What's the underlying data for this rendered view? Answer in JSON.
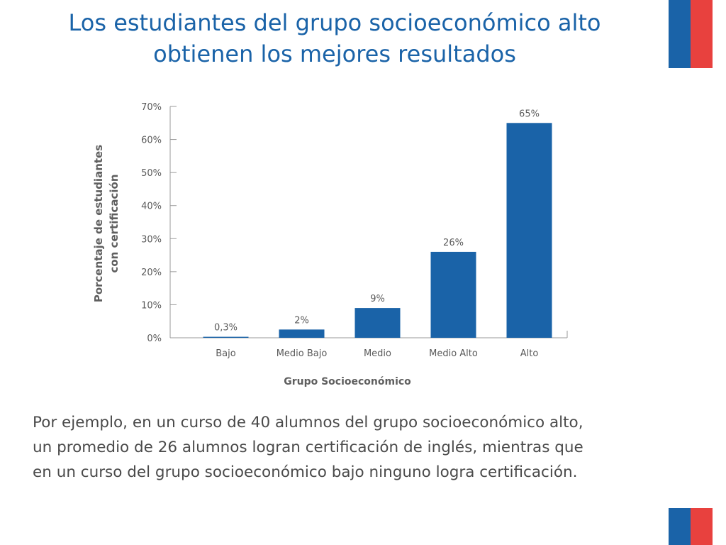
{
  "colors": {
    "title": "#1a63a8",
    "bar": "#1a63a8",
    "axis_title": "#5f5f5f",
    "tick": "#5a5a5a",
    "axis_line": "#9a9a9a",
    "flag_blue": "#1a63a8",
    "flag_red": "#e8413e"
  },
  "slide": {
    "title_lines": [
      "Los estudiantes del grupo socioeconómico alto",
      "obtienen los mejores resultados"
    ],
    "paragraph_lines": [
      "Por ejemplo, en un curso de 40 alumnos del grupo socioeconómico alto,",
      "un promedio de 26 alumnos logran certificación de inglés, mientras que",
      "en un curso del grupo socioeconómico bajo ninguno logra certificación."
    ]
  },
  "chart_data": {
    "type": "bar",
    "categories": [
      "Bajo",
      "Medio Bajo",
      "Medio",
      "Medio Alto",
      "Alto"
    ],
    "values": [
      0.3,
      2.5,
      9,
      26,
      65
    ],
    "data_labels": [
      "0,3%",
      "2%",
      "9%",
      "26%",
      "65%"
    ],
    "xlabel": "Grupo Socioeconómico",
    "ylabel_lines": [
      "Porcentaje de estudiantes",
      "con certificación"
    ],
    "ylim": [
      0,
      70
    ],
    "yticks": [
      0,
      10,
      20,
      30,
      40,
      50,
      60,
      70
    ],
    "ytick_labels": [
      "0%",
      "10%",
      "20%",
      "30%",
      "40%",
      "50%",
      "60%",
      "70%"
    ],
    "grid": false,
    "legend": "none"
  }
}
